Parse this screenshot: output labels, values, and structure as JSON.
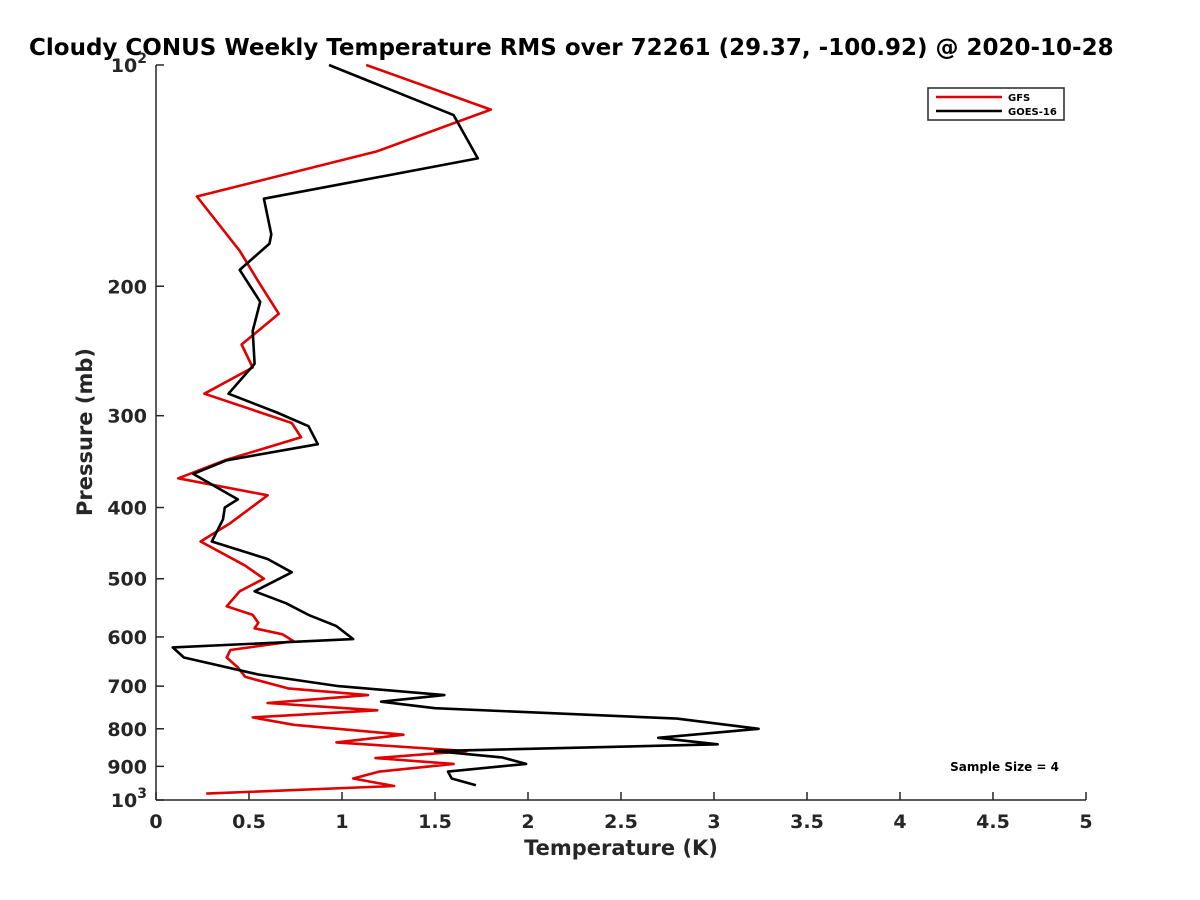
{
  "chart_data": {
    "type": "line",
    "title": "Cloudy CONUS Weekly Temperature RMS over 72261 (29.37, -100.92) @ 2020-10-28",
    "xlabel": "Temperature (K)",
    "ylabel": "Pressure (mb)",
    "xlim": [
      0,
      5
    ],
    "ylim": [
      100,
      1000
    ],
    "yscale": "log",
    "y_reversed": true,
    "xticks": [
      0,
      0.5,
      1,
      1.5,
      2,
      2.5,
      3,
      3.5,
      4,
      4.5,
      5
    ],
    "xtick_labels": [
      "0",
      "0.5",
      "1",
      "1.5",
      "2",
      "2.5",
      "3",
      "3.5",
      "4",
      "4.5",
      "5"
    ],
    "yticks": [
      {
        "value": 100,
        "base": "10",
        "exp": "2",
        "label": ""
      },
      {
        "value": 200,
        "base": "",
        "exp": "",
        "label": "200"
      },
      {
        "value": 300,
        "base": "",
        "exp": "",
        "label": "300"
      },
      {
        "value": 400,
        "base": "",
        "exp": "",
        "label": "400"
      },
      {
        "value": 500,
        "base": "",
        "exp": "",
        "label": "500"
      },
      {
        "value": 600,
        "base": "",
        "exp": "",
        "label": "600"
      },
      {
        "value": 700,
        "base": "",
        "exp": "",
        "label": "700"
      },
      {
        "value": 800,
        "base": "",
        "exp": "",
        "label": "800"
      },
      {
        "value": 900,
        "base": "",
        "exp": "",
        "label": "900"
      },
      {
        "value": 1000,
        "base": "10",
        "exp": "3",
        "label": ""
      }
    ],
    "legend_position": "top-right",
    "annotation": "Sample Size = 4",
    "series": [
      {
        "name": "GFS",
        "color": "#e00000",
        "points": [
          [
            1.13,
            100
          ],
          [
            1.8,
            115
          ],
          [
            1.19,
            131
          ],
          [
            0.22,
            151
          ],
          [
            0.45,
            179
          ],
          [
            0.55,
            197
          ],
          [
            0.66,
            218
          ],
          [
            0.46,
            240
          ],
          [
            0.52,
            258
          ],
          [
            0.26,
            280
          ],
          [
            0.73,
            307
          ],
          [
            0.78,
            321
          ],
          [
            0.37,
            345
          ],
          [
            0.12,
            365
          ],
          [
            0.6,
            385
          ],
          [
            0.4,
            420
          ],
          [
            0.24,
            445
          ],
          [
            0.48,
            480
          ],
          [
            0.58,
            500
          ],
          [
            0.45,
            520
          ],
          [
            0.38,
            545
          ],
          [
            0.52,
            560
          ],
          [
            0.55,
            574
          ],
          [
            0.53,
            584
          ],
          [
            0.68,
            595
          ],
          [
            0.74,
            608
          ],
          [
            0.4,
            625
          ],
          [
            0.38,
            640
          ],
          [
            0.44,
            660
          ],
          [
            0.48,
            680
          ],
          [
            0.71,
            705
          ],
          [
            1.14,
            720
          ],
          [
            0.6,
            738
          ],
          [
            1.19,
            755
          ],
          [
            0.52,
            772
          ],
          [
            0.74,
            790
          ],
          [
            1.33,
            815
          ],
          [
            0.97,
            835
          ],
          [
            1.67,
            858
          ],
          [
            1.18,
            877
          ],
          [
            1.6,
            893
          ],
          [
            1.2,
            915
          ],
          [
            1.06,
            935
          ],
          [
            1.28,
            957
          ],
          [
            0.27,
            980
          ]
        ]
      },
      {
        "name": "GOES-16",
        "color": "#000000",
        "points": [
          [
            0.93,
            100
          ],
          [
            1.6,
            117
          ],
          [
            1.73,
            134
          ],
          [
            0.58,
            152
          ],
          [
            0.62,
            170
          ],
          [
            0.61,
            175
          ],
          [
            0.45,
            190
          ],
          [
            0.56,
            210
          ],
          [
            0.52,
            230
          ],
          [
            0.53,
            255
          ],
          [
            0.39,
            280
          ],
          [
            0.65,
            297
          ],
          [
            0.82,
            310
          ],
          [
            0.87,
            328
          ],
          [
            0.38,
            345
          ],
          [
            0.2,
            360
          ],
          [
            0.44,
            390
          ],
          [
            0.37,
            400
          ],
          [
            0.36,
            415
          ],
          [
            0.3,
            445
          ],
          [
            0.6,
            470
          ],
          [
            0.73,
            490
          ],
          [
            0.53,
            520
          ],
          [
            0.7,
            540
          ],
          [
            0.82,
            560
          ],
          [
            0.97,
            580
          ],
          [
            1.06,
            604
          ],
          [
            0.09,
            620
          ],
          [
            0.15,
            640
          ],
          [
            0.55,
            675
          ],
          [
            0.98,
            700
          ],
          [
            1.55,
            720
          ],
          [
            1.21,
            735
          ],
          [
            1.5,
            750
          ],
          [
            2.8,
            775
          ],
          [
            3.24,
            800
          ],
          [
            2.7,
            823
          ],
          [
            3.02,
            840
          ],
          [
            1.5,
            858
          ],
          [
            1.86,
            875
          ],
          [
            1.99,
            893
          ],
          [
            1.57,
            915
          ],
          [
            1.59,
            935
          ],
          [
            1.72,
            955
          ]
        ]
      }
    ]
  }
}
